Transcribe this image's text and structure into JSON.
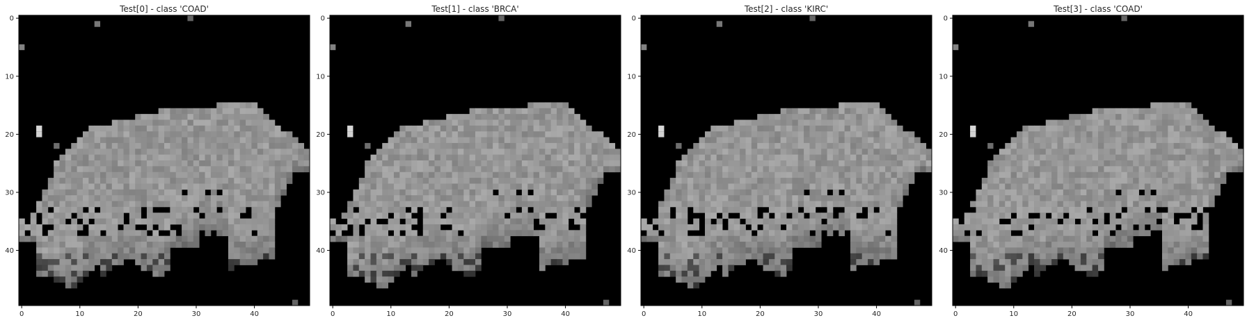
{
  "chart_data": [
    {
      "type": "heatmap",
      "title": "Test[0] - class 'COAD'",
      "colormap": "gray",
      "matrix_size": [
        50,
        50
      ],
      "x_ticks": [
        "0",
        "10",
        "20",
        "30",
        "40"
      ],
      "y_ticks": [
        "0",
        "10",
        "20",
        "30",
        "40"
      ],
      "xlim": [
        -0.5,
        49.5
      ],
      "ylim": [
        49.5,
        -0.5
      ],
      "grid": false,
      "legend": "none"
    },
    {
      "type": "heatmap",
      "title": "Test[1] - class 'BRCA'",
      "colormap": "gray",
      "matrix_size": [
        50,
        50
      ],
      "x_ticks": [
        "0",
        "10",
        "20",
        "30",
        "40"
      ],
      "y_ticks": [
        "0",
        "10",
        "20",
        "30",
        "40"
      ],
      "xlim": [
        -0.5,
        49.5
      ],
      "ylim": [
        49.5,
        -0.5
      ],
      "grid": false,
      "legend": "none"
    },
    {
      "type": "heatmap",
      "title": "Test[2] - class 'KIRC'",
      "colormap": "gray",
      "matrix_size": [
        50,
        50
      ],
      "x_ticks": [
        "0",
        "10",
        "20",
        "30",
        "40"
      ],
      "y_ticks": [
        "0",
        "10",
        "20",
        "30",
        "40"
      ],
      "xlim": [
        -0.5,
        49.5
      ],
      "ylim": [
        49.5,
        -0.5
      ],
      "grid": false,
      "legend": "none"
    },
    {
      "type": "heatmap",
      "title": "Test[3] - class 'COAD'",
      "colormap": "gray",
      "matrix_size": [
        50,
        50
      ],
      "x_ticks": [
        "0",
        "10",
        "20",
        "30",
        "40"
      ],
      "y_ticks": [
        "0",
        "10",
        "20",
        "30",
        "40"
      ],
      "xlim": [
        -0.5,
        49.5
      ],
      "ylim": [
        49.5,
        -0.5
      ],
      "grid": false,
      "legend": "none"
    }
  ]
}
